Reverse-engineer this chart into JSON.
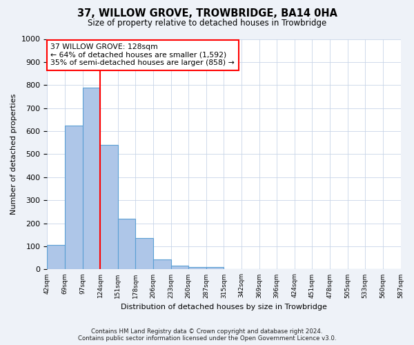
{
  "title": "37, WILLOW GROVE, TROWBRIDGE, BA14 0HA",
  "subtitle": "Size of property relative to detached houses in Trowbridge",
  "xlabel": "Distribution of detached houses by size in Trowbridge",
  "ylabel": "Number of detached properties",
  "bar_values": [
    105,
    625,
    790,
    540,
    220,
    135,
    42,
    16,
    10,
    11,
    0,
    0,
    0,
    0,
    0,
    0,
    0,
    0,
    0,
    0
  ],
  "bar_labels": [
    "42sqm",
    "69sqm",
    "97sqm",
    "124sqm",
    "151sqm",
    "178sqm",
    "206sqm",
    "233sqm",
    "260sqm",
    "287sqm",
    "315sqm",
    "342sqm",
    "369sqm",
    "396sqm",
    "424sqm",
    "451sqm",
    "478sqm",
    "505sqm",
    "533sqm",
    "560sqm",
    "587sqm"
  ],
  "bar_color": "#aec6e8",
  "bar_edge_color": "#5a9fd4",
  "annotation_text": "37 WILLOW GROVE: 128sqm\n← 64% of detached houses are smaller (1,592)\n35% of semi-detached houses are larger (858) →",
  "annotation_box_color": "white",
  "annotation_box_edge_color": "red",
  "redline_color": "red",
  "ylim": [
    0,
    1000
  ],
  "yticks": [
    0,
    100,
    200,
    300,
    400,
    500,
    600,
    700,
    800,
    900,
    1000
  ],
  "footer_line1": "Contains HM Land Registry data © Crown copyright and database right 2024.",
  "footer_line2": "Contains public sector information licensed under the Open Government Licence v3.0.",
  "bg_color": "#eef2f8",
  "plot_bg_color": "white",
  "n_bars": 20,
  "n_labels": 21
}
